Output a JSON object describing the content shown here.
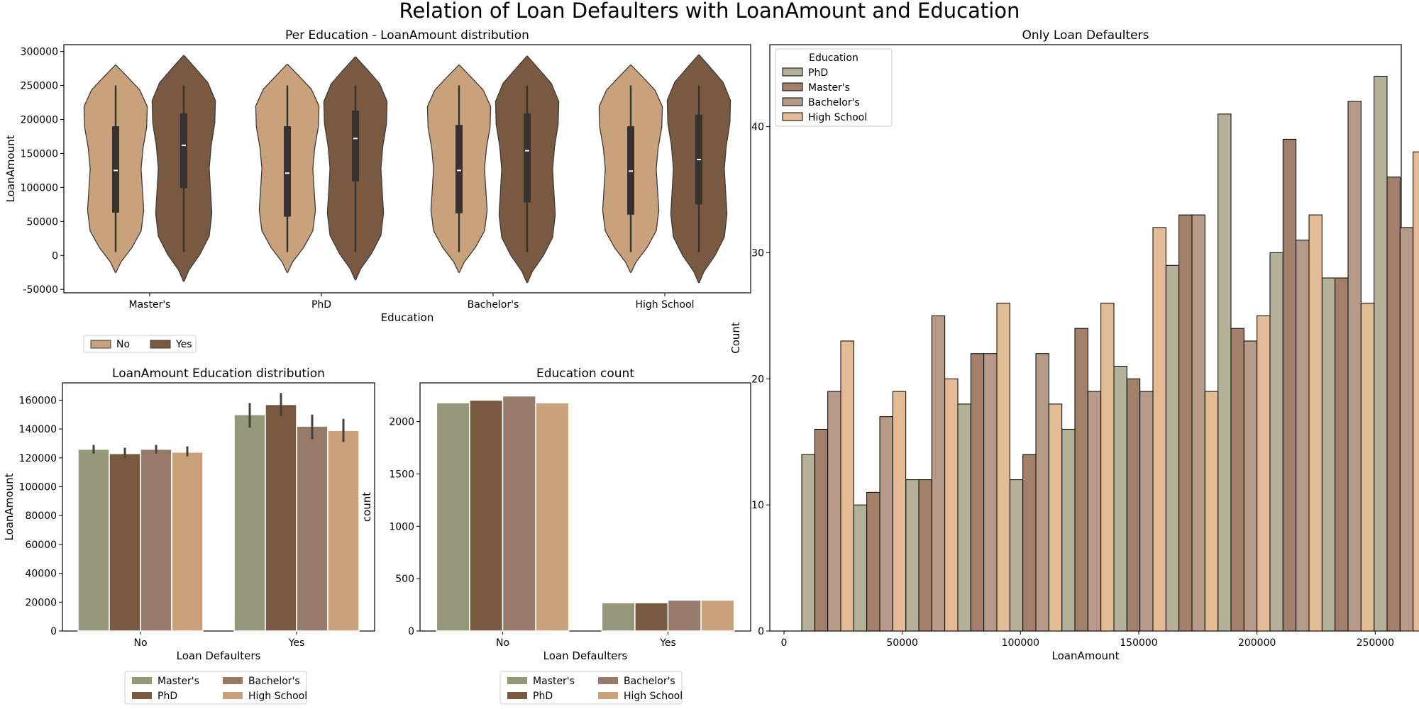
{
  "figure": {
    "title": "Relation of Loan Defaulters with LoanAmount and Education"
  },
  "colors": {
    "no": "#c9a27c",
    "yes": "#795a41",
    "masters": "#97977b",
    "phd": "#795a41",
    "bachelors": "#977b6a",
    "highschool": "#c9a27c",
    "hist_phd": "#b3b197",
    "hist_masters": "#a3806a",
    "hist_bachelors": "#b49a87",
    "hist_highschool": "#e3bb94",
    "box": "#353230"
  },
  "chart_data": [
    {
      "id": "violin",
      "type": "violin",
      "title": "Per Education - LoanAmount distribution",
      "xlabel": "Education",
      "ylabel": "LoanAmount",
      "categories": [
        "Master's",
        "PhD",
        "Bachelor's",
        "High School"
      ],
      "ylim": [
        -55000,
        310000
      ],
      "yticks": [
        -50000,
        0,
        50000,
        100000,
        150000,
        200000,
        250000,
        300000
      ],
      "hue_order": [
        "No",
        "Yes"
      ],
      "legend": {
        "position": "below-left",
        "entries": [
          "No",
          "Yes"
        ]
      },
      "series": [
        {
          "name": "No",
          "color_key": "no",
          "values": [
            {
              "category": "Master's",
              "min": 5000,
              "q1": 63000,
              "median": 125000,
              "q3": 190000,
              "max": 250000,
              "kde_low": -25000,
              "kde_high": 280000
            },
            {
              "category": "PhD",
              "min": 5000,
              "q1": 57000,
              "median": 121000,
              "q3": 190000,
              "max": 250000,
              "kde_low": -25000,
              "kde_high": 281000
            },
            {
              "category": "Bachelor's",
              "min": 5000,
              "q1": 62000,
              "median": 125000,
              "q3": 192000,
              "max": 250000,
              "kde_low": -25000,
              "kde_high": 280000
            },
            {
              "category": "High School",
              "min": 5000,
              "q1": 60000,
              "median": 124000,
              "q3": 190000,
              "max": 250000,
              "kde_low": -25000,
              "kde_high": 280000
            }
          ]
        },
        {
          "name": "Yes",
          "color_key": "yes",
          "values": [
            {
              "category": "Master's",
              "min": 5000,
              "q1": 99000,
              "median": 162000,
              "q3": 209000,
              "max": 250000,
              "kde_low": -38000,
              "kde_high": 294000
            },
            {
              "category": "PhD",
              "min": 5000,
              "q1": 109000,
              "median": 172000,
              "q3": 213000,
              "max": 250000,
              "kde_low": -36000,
              "kde_high": 292000
            },
            {
              "category": "Bachelor's",
              "min": 5000,
              "q1": 78000,
              "median": 154000,
              "q3": 209000,
              "max": 250000,
              "kde_low": -40000,
              "kde_high": 293000
            },
            {
              "category": "High School",
              "min": 5000,
              "q1": 75000,
              "median": 141000,
              "q3": 207000,
              "max": 250000,
              "kde_low": -40000,
              "kde_high": 295000
            }
          ]
        }
      ]
    },
    {
      "id": "bar_amount",
      "type": "bar",
      "title": "LoanAmount Education distribution",
      "xlabel": "Loan Defaulters",
      "ylabel": "LoanAmount",
      "categories": [
        "No",
        "Yes"
      ],
      "ylim": [
        0,
        172000
      ],
      "yticks": [
        0,
        20000,
        40000,
        60000,
        80000,
        100000,
        120000,
        140000,
        160000
      ],
      "legend": {
        "position": "below",
        "entries": [
          "Master's",
          "PhD",
          "Bachelor's",
          "High School"
        ]
      },
      "series": [
        {
          "name": "Master's",
          "color_key": "masters",
          "values": [
            126000,
            150000
          ],
          "err_low": [
            123000,
            141000
          ],
          "err_high": [
            129000,
            158000
          ]
        },
        {
          "name": "PhD",
          "color_key": "phd",
          "values": [
            123000,
            157000
          ],
          "err_low": [
            120000,
            149000
          ],
          "err_high": [
            127000,
            165000
          ]
        },
        {
          "name": "Bachelor's",
          "color_key": "bachelors",
          "values": [
            126000,
            142000
          ],
          "err_low": [
            123000,
            133000
          ],
          "err_high": [
            129000,
            150000
          ]
        },
        {
          "name": "High School",
          "color_key": "highschool",
          "values": [
            124000,
            139000
          ],
          "err_low": [
            121000,
            131000
          ],
          "err_high": [
            128000,
            147000
          ]
        }
      ]
    },
    {
      "id": "bar_count",
      "type": "bar",
      "title": "Education count",
      "xlabel": "Loan Defaulters",
      "ylabel": "count",
      "categories": [
        "No",
        "Yes"
      ],
      "ylim": [
        0,
        2370
      ],
      "yticks": [
        0,
        500,
        1000,
        1500,
        2000
      ],
      "legend": {
        "position": "below",
        "entries": [
          "Master's",
          "PhD",
          "Bachelor's",
          "High School"
        ]
      },
      "series": [
        {
          "name": "Master's",
          "color_key": "masters",
          "values": [
            2180,
            270
          ]
        },
        {
          "name": "PhD",
          "color_key": "phd",
          "values": [
            2205,
            270
          ]
        },
        {
          "name": "Bachelor's",
          "color_key": "bachelors",
          "values": [
            2245,
            295
          ]
        },
        {
          "name": "High School",
          "color_key": "highschool",
          "values": [
            2180,
            295
          ]
        }
      ]
    },
    {
      "id": "hist",
      "type": "bar",
      "title": "Only Loan Defaulters",
      "xlabel": "LoanAmount",
      "ylabel": "Count",
      "xlim": [
        -6000,
        261000
      ],
      "ylim": [
        0,
        46.5
      ],
      "xticks": [
        0,
        50000,
        100000,
        150000,
        200000,
        250000
      ],
      "yticks": [
        0,
        10,
        20,
        30,
        40
      ],
      "bin_edges": [
        7500,
        29500,
        51500,
        73500,
        95500,
        117500,
        139500,
        161500,
        183500,
        205500,
        227500,
        249500
      ],
      "legend": {
        "position": "top-left",
        "title": "Education",
        "entries": [
          "PhD",
          "Master's",
          "Bachelor's",
          "High School"
        ]
      },
      "series": [
        {
          "name": "PhD",
          "color_key": "hist_phd",
          "values": [
            14,
            10,
            12,
            18,
            12,
            16,
            21,
            29,
            41,
            30,
            28,
            44
          ]
        },
        {
          "name": "Master's",
          "color_key": "hist_masters",
          "values": [
            16,
            11,
            12,
            22,
            14,
            24,
            20,
            33,
            24,
            39,
            28,
            36
          ]
        },
        {
          "name": "Bachelor's",
          "color_key": "hist_bachelors",
          "values": [
            19,
            17,
            25,
            22,
            22,
            19,
            19,
            33,
            23,
            31,
            42,
            32
          ]
        },
        {
          "name": "High School",
          "color_key": "hist_highschool",
          "values": [
            23,
            19,
            20,
            26,
            18,
            26,
            32,
            19,
            25,
            33,
            26,
            38
          ]
        }
      ]
    }
  ]
}
